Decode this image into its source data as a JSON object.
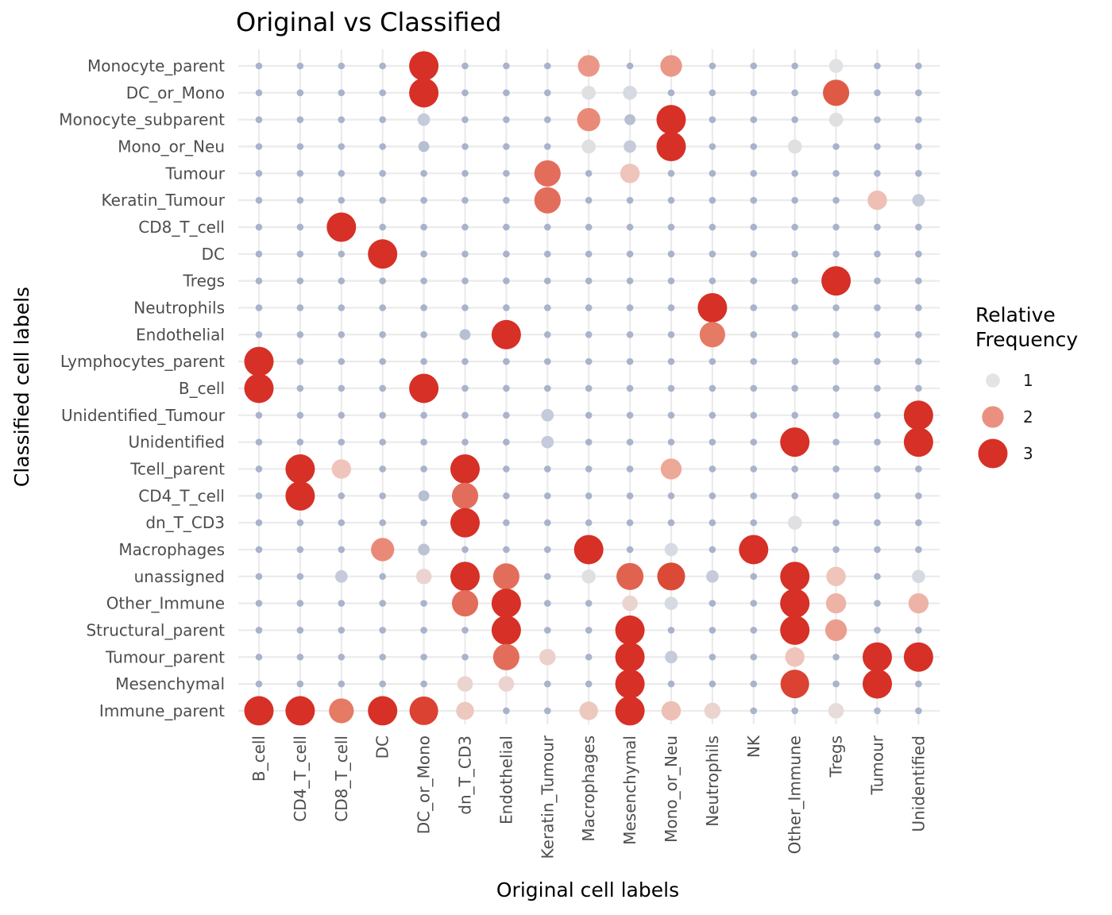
{
  "chart_data": {
    "type": "scatter",
    "title": "Original vs Classified",
    "xlabel": "Original cell labels",
    "ylabel": "Classified cell labels",
    "x_categories": [
      "B_cell",
      "CD4_T_cell",
      "CD8_T_cell",
      "DC",
      "DC_or_Mono",
      "dn_T_CD3",
      "Endothelial",
      "Keratin_Tumour",
      "Macrophages",
      "Mesenchymal",
      "Mono_or_Neu",
      "Neutrophils",
      "NK",
      "Other_Immune",
      "Tregs",
      "Tumour",
      "Unidentified"
    ],
    "y_categories": [
      "Monocyte_parent",
      "DC_or_Mono",
      "Monocyte_subparent",
      "Mono_or_Neu",
      "Tumour",
      "Keratin_Tumour",
      "CD8_T_cell",
      "DC",
      "Tregs",
      "Neutrophils",
      "Endothelial",
      "Lymphocytes_parent",
      "B_cell",
      "Unidentified_Tumour",
      "Unidentified",
      "Tcell_parent",
      "CD4_T_cell",
      "dn_T_CD3",
      "Macrophages",
      "unassigned",
      "Other_Immune",
      "Structural_parent",
      "Tumour_parent",
      "Mesenchymal",
      "Immune_parent"
    ],
    "legend": {
      "title_line1": "Relative",
      "title_line2": "Frequency",
      "position": "right",
      "entries": [
        {
          "label": "1",
          "value": 1,
          "color": "#e4e4e4"
        },
        {
          "label": "2",
          "value": 2,
          "color": "#ea9080"
        },
        {
          "label": "3",
          "value": 3,
          "color": "#d63027"
        }
      ]
    },
    "background_dot_color": "#a9b3cb",
    "points": [
      {
        "x": "DC_or_Mono",
        "y": "Monocyte_parent",
        "value": 3.0,
        "color": "#d63027"
      },
      {
        "x": "Macrophages",
        "y": "Monocyte_parent",
        "value": 2.0,
        "color": "#eb9787"
      },
      {
        "x": "Mesenchymal",
        "y": "Monocyte_parent",
        "value": 0.3,
        "color": "#a9b3cb"
      },
      {
        "x": "Mono_or_Neu",
        "y": "Monocyte_parent",
        "value": 2.0,
        "color": "#eb9787"
      },
      {
        "x": "Tregs",
        "y": "Monocyte_parent",
        "value": 1.0,
        "color": "#e2e2e4"
      },
      {
        "x": "CD4_T_cell",
        "y": "DC_or_Mono",
        "value": 0.5,
        "color": "#a9b3cb"
      },
      {
        "x": "DC_or_Mono",
        "y": "DC_or_Mono",
        "value": 3.0,
        "color": "#d63027"
      },
      {
        "x": "Macrophages",
        "y": "DC_or_Mono",
        "value": 1.0,
        "color": "#e0e0e2"
      },
      {
        "x": "Mesenchymal",
        "y": "DC_or_Mono",
        "value": 1.0,
        "color": "#d6dae3"
      },
      {
        "x": "Tregs",
        "y": "DC_or_Mono",
        "value": 2.6,
        "color": "#df5a45"
      },
      {
        "x": "DC_or_Mono",
        "y": "Monocyte_subparent",
        "value": 0.8,
        "color": "#c5cbda"
      },
      {
        "x": "Macrophages",
        "y": "Monocyte_subparent",
        "value": 2.2,
        "color": "#e98a78"
      },
      {
        "x": "Mesenchymal",
        "y": "Monocyte_subparent",
        "value": 0.6,
        "color": "#b7bfd2"
      },
      {
        "x": "Mono_or_Neu",
        "y": "Monocyte_subparent",
        "value": 3.0,
        "color": "#d63027"
      },
      {
        "x": "Tregs",
        "y": "Monocyte_subparent",
        "value": 1.0,
        "color": "#e0e0e2"
      },
      {
        "x": "DC_or_Mono",
        "y": "Mono_or_Neu",
        "value": 0.6,
        "color": "#b7bfd2"
      },
      {
        "x": "Macrophages",
        "y": "Mono_or_Neu",
        "value": 1.0,
        "color": "#e0e0e2"
      },
      {
        "x": "Mesenchymal",
        "y": "Mono_or_Neu",
        "value": 0.8,
        "color": "#c5cbda"
      },
      {
        "x": "Mono_or_Neu",
        "y": "Mono_or_Neu",
        "value": 3.0,
        "color": "#d63027"
      },
      {
        "x": "Other_Immune",
        "y": "Mono_or_Neu",
        "value": 1.0,
        "color": "#e0e0e2"
      },
      {
        "x": "Keratin_Tumour",
        "y": "Tumour",
        "value": 2.6,
        "color": "#e36d5b"
      },
      {
        "x": "Mesenchymal",
        "y": "Tumour",
        "value": 1.7,
        "color": "#efc4bb"
      },
      {
        "x": "Keratin_Tumour",
        "y": "Keratin_Tumour",
        "value": 2.6,
        "color": "#e36d5b"
      },
      {
        "x": "Tumour",
        "y": "Keratin_Tumour",
        "value": 1.7,
        "color": "#efbfb5"
      },
      {
        "x": "Unidentified",
        "y": "Keratin_Tumour",
        "value": 0.8,
        "color": "#c5cbda"
      },
      {
        "x": "CD8_T_cell",
        "y": "CD8_T_cell",
        "value": 3.0,
        "color": "#d63027"
      },
      {
        "x": "DC",
        "y": "DC",
        "value": 3.0,
        "color": "#d63027"
      },
      {
        "x": "Tregs",
        "y": "Tregs",
        "value": 3.0,
        "color": "#d63027"
      },
      {
        "x": "Neutrophils",
        "y": "Neutrophils",
        "value": 3.0,
        "color": "#d63027"
      },
      {
        "x": "dn_T_CD3",
        "y": "Endothelial",
        "value": 0.6,
        "color": "#b7bfd2"
      },
      {
        "x": "Endothelial",
        "y": "Endothelial",
        "value": 3.0,
        "color": "#d63027"
      },
      {
        "x": "Neutrophils",
        "y": "Endothelial",
        "value": 2.5,
        "color": "#e57a65"
      },
      {
        "x": "B_cell",
        "y": "Lymphocytes_parent",
        "value": 3.0,
        "color": "#d63027"
      },
      {
        "x": "B_cell",
        "y": "B_cell",
        "value": 3.0,
        "color": "#d63027"
      },
      {
        "x": "DC_or_Mono",
        "y": "B_cell",
        "value": 3.0,
        "color": "#d63027"
      },
      {
        "x": "Keratin_Tumour",
        "y": "Unidentified_Tumour",
        "value": 0.8,
        "color": "#c5cbda"
      },
      {
        "x": "Unidentified",
        "y": "Unidentified_Tumour",
        "value": 3.0,
        "color": "#d63027"
      },
      {
        "x": "Keratin_Tumour",
        "y": "Unidentified",
        "value": 0.8,
        "color": "#c5cbda"
      },
      {
        "x": "Other_Immune",
        "y": "Unidentified",
        "value": 3.0,
        "color": "#d63027"
      },
      {
        "x": "Unidentified",
        "y": "Unidentified",
        "value": 3.0,
        "color": "#d63027"
      },
      {
        "x": "CD4_T_cell",
        "y": "Tcell_parent",
        "value": 3.0,
        "color": "#d63027"
      },
      {
        "x": "CD8_T_cell",
        "y": "Tcell_parent",
        "value": 1.7,
        "color": "#efc4bb"
      },
      {
        "x": "dn_T_CD3",
        "y": "Tcell_parent",
        "value": 3.0,
        "color": "#d63027"
      },
      {
        "x": "Mono_or_Neu",
        "y": "Tcell_parent",
        "value": 1.9,
        "color": "#eda898"
      },
      {
        "x": "CD4_T_cell",
        "y": "CD4_T_cell",
        "value": 3.0,
        "color": "#d63027"
      },
      {
        "x": "DC_or_Mono",
        "y": "CD4_T_cell",
        "value": 0.6,
        "color": "#b7bfd2"
      },
      {
        "x": "dn_T_CD3",
        "y": "CD4_T_cell",
        "value": 2.6,
        "color": "#e36d5b"
      },
      {
        "x": "Tregs",
        "y": "CD4_T_cell",
        "value": 0.4,
        "color": "#a9b3cb"
      },
      {
        "x": "dn_T_CD3",
        "y": "dn_T_CD3",
        "value": 3.0,
        "color": "#d63027"
      },
      {
        "x": "Other_Immune",
        "y": "dn_T_CD3",
        "value": 1.0,
        "color": "#e0e0e2"
      },
      {
        "x": "DC",
        "y": "Macrophages",
        "value": 2.2,
        "color": "#e98a78"
      },
      {
        "x": "DC_or_Mono",
        "y": "Macrophages",
        "value": 0.7,
        "color": "#bcc3d5"
      },
      {
        "x": "Macrophages",
        "y": "Macrophages",
        "value": 3.0,
        "color": "#d63027"
      },
      {
        "x": "Mono_or_Neu",
        "y": "Macrophages",
        "value": 0.9,
        "color": "#d6dae3"
      },
      {
        "x": "NK",
        "y": "Macrophages",
        "value": 3.0,
        "color": "#d63027"
      },
      {
        "x": "CD8_T_cell",
        "y": "unassigned",
        "value": 0.8,
        "color": "#c5cbda"
      },
      {
        "x": "DC_or_Mono",
        "y": "unassigned",
        "value": 1.2,
        "color": "#ebd4cf"
      },
      {
        "x": "dn_T_CD3",
        "y": "unassigned",
        "value": 3.0,
        "color": "#d63027"
      },
      {
        "x": "Endothelial",
        "y": "unassigned",
        "value": 2.6,
        "color": "#e36d5b"
      },
      {
        "x": "Macrophages",
        "y": "unassigned",
        "value": 1.0,
        "color": "#e0e0e2"
      },
      {
        "x": "Mesenchymal",
        "y": "unassigned",
        "value": 2.7,
        "color": "#e0634f"
      },
      {
        "x": "Mono_or_Neu",
        "y": "unassigned",
        "value": 2.8,
        "color": "#db4a37"
      },
      {
        "x": "Neutrophils",
        "y": "unassigned",
        "value": 0.8,
        "color": "#c5cbda"
      },
      {
        "x": "Other_Immune",
        "y": "unassigned",
        "value": 3.0,
        "color": "#d63027"
      },
      {
        "x": "Tregs",
        "y": "unassigned",
        "value": 1.7,
        "color": "#efc4bb"
      },
      {
        "x": "Unidentified",
        "y": "unassigned",
        "value": 0.9,
        "color": "#d6dae3"
      },
      {
        "x": "dn_T_CD3",
        "y": "Other_Immune",
        "value": 2.6,
        "color": "#e36d5b"
      },
      {
        "x": "Endothelial",
        "y": "Other_Immune",
        "value": 3.0,
        "color": "#d63027"
      },
      {
        "x": "Mesenchymal",
        "y": "Other_Immune",
        "value": 1.2,
        "color": "#ebd4cf"
      },
      {
        "x": "Mono_or_Neu",
        "y": "Other_Immune",
        "value": 0.9,
        "color": "#d6dae3"
      },
      {
        "x": "Other_Immune",
        "y": "Other_Immune",
        "value": 3.0,
        "color": "#d63027"
      },
      {
        "x": "Tregs",
        "y": "Other_Immune",
        "value": 1.8,
        "color": "#edb3a6"
      },
      {
        "x": "Unidentified",
        "y": "Other_Immune",
        "value": 1.8,
        "color": "#edb3a6"
      },
      {
        "x": "Endothelial",
        "y": "Structural_parent",
        "value": 3.0,
        "color": "#d63027"
      },
      {
        "x": "Macrophages",
        "y": "Structural_parent",
        "value": 0.5,
        "color": "#a9b3cb"
      },
      {
        "x": "Mesenchymal",
        "y": "Structural_parent",
        "value": 3.0,
        "color": "#d63027"
      },
      {
        "x": "Mono_or_Neu",
        "y": "Structural_parent",
        "value": 0.5,
        "color": "#a9b3cb"
      },
      {
        "x": "Other_Immune",
        "y": "Structural_parent",
        "value": 3.0,
        "color": "#d63027"
      },
      {
        "x": "Tregs",
        "y": "Structural_parent",
        "value": 2.0,
        "color": "#eb9e8e"
      },
      {
        "x": "Endothelial",
        "y": "Tumour_parent",
        "value": 2.6,
        "color": "#e36d5b"
      },
      {
        "x": "Keratin_Tumour",
        "y": "Tumour_parent",
        "value": 1.3,
        "color": "#ecd0ca"
      },
      {
        "x": "Mesenchymal",
        "y": "Tumour_parent",
        "value": 3.0,
        "color": "#d63027"
      },
      {
        "x": "Mono_or_Neu",
        "y": "Tumour_parent",
        "value": 0.8,
        "color": "#c5cbda"
      },
      {
        "x": "Other_Immune",
        "y": "Tumour_parent",
        "value": 1.7,
        "color": "#efc4bb"
      },
      {
        "x": "Tumour",
        "y": "Tumour_parent",
        "value": 3.0,
        "color": "#d63027"
      },
      {
        "x": "Unidentified",
        "y": "Tumour_parent",
        "value": 3.0,
        "color": "#d63027"
      },
      {
        "x": "dn_T_CD3",
        "y": "Mesenchymal",
        "value": 1.2,
        "color": "#ebd4cf"
      },
      {
        "x": "Endothelial",
        "y": "Mesenchymal",
        "value": 1.2,
        "color": "#ebd4cf"
      },
      {
        "x": "Mesenchymal",
        "y": "Mesenchymal",
        "value": 3.0,
        "color": "#d63027"
      },
      {
        "x": "Other_Immune",
        "y": "Mesenchymal",
        "value": 2.9,
        "color": "#db4232"
      },
      {
        "x": "Tumour",
        "y": "Mesenchymal",
        "value": 3.0,
        "color": "#d63027"
      },
      {
        "x": "B_cell",
        "y": "Immune_parent",
        "value": 3.0,
        "color": "#d63027"
      },
      {
        "x": "CD4_T_cell",
        "y": "Immune_parent",
        "value": 3.0,
        "color": "#d63027"
      },
      {
        "x": "CD8_T_cell",
        "y": "Immune_parent",
        "value": 2.4,
        "color": "#e57a65"
      },
      {
        "x": "DC",
        "y": "Immune_parent",
        "value": 3.0,
        "color": "#d63027"
      },
      {
        "x": "DC_or_Mono",
        "y": "Immune_parent",
        "value": 2.9,
        "color": "#db4232"
      },
      {
        "x": "dn_T_CD3",
        "y": "Immune_parent",
        "value": 1.5,
        "color": "#ecc8bf"
      },
      {
        "x": "Macrophages",
        "y": "Immune_parent",
        "value": 1.6,
        "color": "#ecc8bf"
      },
      {
        "x": "Mesenchymal",
        "y": "Immune_parent",
        "value": 3.0,
        "color": "#d63027"
      },
      {
        "x": "Mono_or_Neu",
        "y": "Immune_parent",
        "value": 1.7,
        "color": "#ecc0b5"
      },
      {
        "x": "Neutrophils",
        "y": "Immune_parent",
        "value": 1.3,
        "color": "#ebd4cf"
      },
      {
        "x": "Tregs",
        "y": "Immune_parent",
        "value": 1.2,
        "color": "#e6dcda"
      }
    ]
  }
}
